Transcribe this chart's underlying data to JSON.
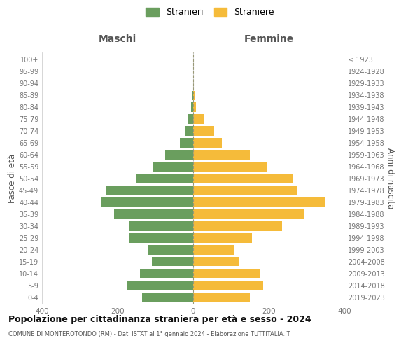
{
  "age_groups_bottom_to_top": [
    "0-4",
    "5-9",
    "10-14",
    "15-19",
    "20-24",
    "25-29",
    "30-34",
    "35-39",
    "40-44",
    "45-49",
    "50-54",
    "55-59",
    "60-64",
    "65-69",
    "70-74",
    "75-79",
    "80-84",
    "85-89",
    "90-94",
    "95-99",
    "100+"
  ],
  "birth_years_bottom_to_top": [
    "2019-2023",
    "2014-2018",
    "2009-2013",
    "2004-2008",
    "1999-2003",
    "1994-1998",
    "1989-1993",
    "1984-1988",
    "1979-1983",
    "1974-1978",
    "1969-1973",
    "1964-1968",
    "1959-1963",
    "1954-1958",
    "1949-1953",
    "1944-1948",
    "1939-1943",
    "1934-1938",
    "1929-1933",
    "1924-1928",
    "≤ 1923"
  ],
  "males_bottom_to_top": [
    135,
    175,
    140,
    110,
    120,
    170,
    170,
    210,
    245,
    230,
    150,
    105,
    75,
    35,
    20,
    15,
    5,
    3,
    0,
    0,
    0
  ],
  "females_bottom_to_top": [
    150,
    185,
    175,
    120,
    110,
    155,
    235,
    295,
    350,
    275,
    265,
    195,
    150,
    75,
    55,
    30,
    8,
    5,
    0,
    0,
    0
  ],
  "male_color": "#6a9e5e",
  "female_color": "#f5bb3a",
  "grid_color": "#d0d0d0",
  "title": "Popolazione per cittadinanza straniera per età e sesso - 2024",
  "subtitle": "COMUNE DI MONTEROTONDO (RM) - Dati ISTAT al 1° gennaio 2024 - Elaborazione TUTTITALIA.IT",
  "left_label": "Maschi",
  "right_label": "Femmine",
  "y_left_label": "Fasce di età",
  "y_right_label": "Anni di nascita",
  "legend_male": "Stranieri",
  "legend_female": "Straniere",
  "xlim": 400,
  "background_color": "#ffffff"
}
